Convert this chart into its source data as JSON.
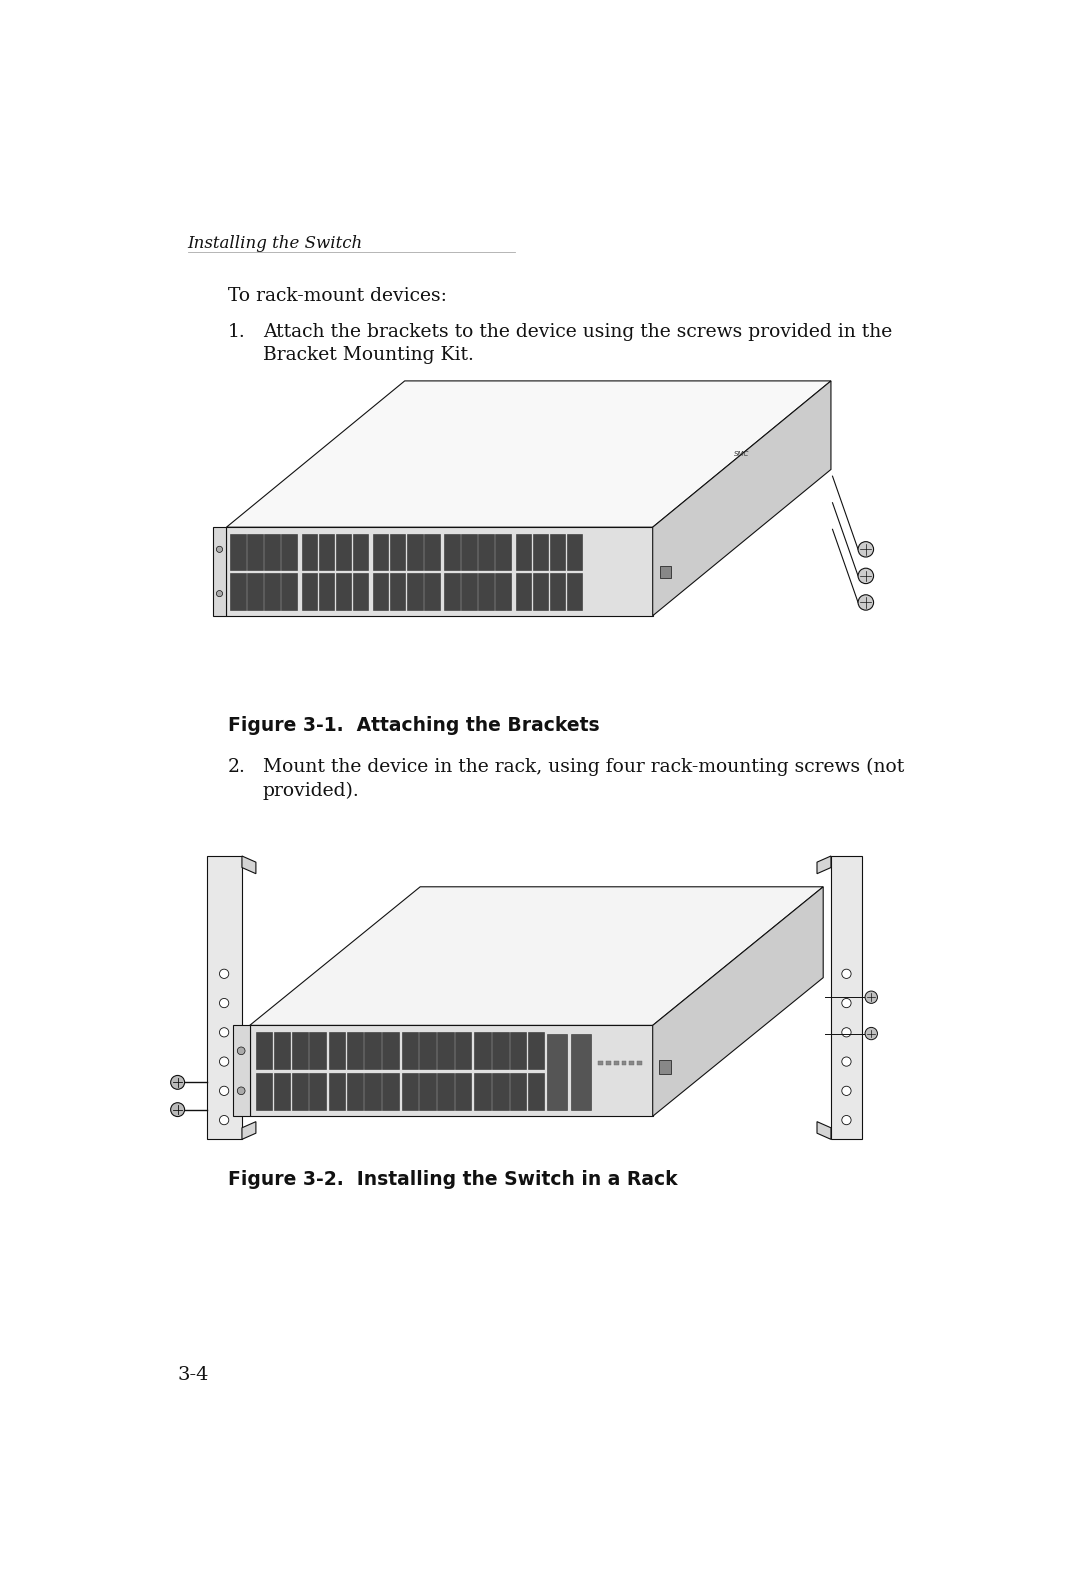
{
  "bg_color": "#ffffff",
  "text_color": "#111111",
  "header": "Installing the Switch",
  "intro_text": "To rack-mount devices:",
  "step1_num": "1.",
  "step1_line1": "Attach the brackets to the device using the screws provided in the",
  "step1_line2": "Bracket Mounting Kit.",
  "fig1_caption": "Figure 3-1.  Attaching the Brackets",
  "step2_num": "2.",
  "step2_line1": "Mount the device in the rack, using four rack-mounting screws (not",
  "step2_line2": "provided).",
  "fig2_caption": "Figure 3-2.  Installing the Switch in a Rack",
  "page_num": "3-4",
  "body_font_size": 13.5,
  "caption_font_size": 13.5,
  "page_num_font_size": 14,
  "header_font_size": 12
}
